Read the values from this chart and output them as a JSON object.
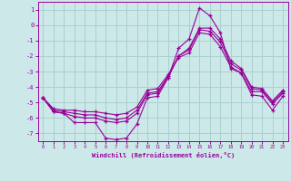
{
  "xlabel": "Windchill (Refroidissement éolien,°C)",
  "bg_color": "#cce8e8",
  "grid_color": "#aad0d0",
  "line_color": "#990099",
  "x_hours": [
    0,
    1,
    2,
    3,
    4,
    5,
    6,
    7,
    8,
    9,
    10,
    11,
    12,
    13,
    14,
    15,
    16,
    17,
    18,
    19,
    20,
    21,
    22,
    23
  ],
  "series1": [
    -4.7,
    -5.6,
    -5.7,
    -6.3,
    -6.3,
    -6.3,
    -7.3,
    -7.4,
    -7.3,
    -6.4,
    -4.7,
    -4.6,
    -3.4,
    -1.5,
    -0.9,
    1.1,
    0.6,
    -0.5,
    -2.8,
    -3.1,
    -4.5,
    -4.6,
    -5.5,
    -4.6
  ],
  "series2": [
    -4.7,
    -5.6,
    -5.7,
    -5.9,
    -6.0,
    -6.0,
    -6.2,
    -6.3,
    -6.2,
    -5.7,
    -4.5,
    -4.4,
    -3.4,
    -2.0,
    -1.5,
    -0.2,
    -0.2,
    -0.9,
    -2.3,
    -2.8,
    -4.0,
    -4.1,
    -4.9,
    -4.2
  ],
  "series3": [
    -4.7,
    -5.5,
    -5.6,
    -5.7,
    -5.8,
    -5.8,
    -6.0,
    -6.1,
    -6.0,
    -5.5,
    -4.4,
    -4.3,
    -3.3,
    -2.0,
    -1.6,
    -0.3,
    -0.4,
    -1.1,
    -2.5,
    -2.9,
    -4.1,
    -4.2,
    -5.0,
    -4.3
  ],
  "series4": [
    -4.7,
    -5.4,
    -5.5,
    -5.5,
    -5.6,
    -5.6,
    -5.7,
    -5.8,
    -5.7,
    -5.3,
    -4.2,
    -4.1,
    -3.2,
    -2.1,
    -1.8,
    -0.5,
    -0.6,
    -1.4,
    -2.7,
    -3.1,
    -4.3,
    -4.3,
    -5.1,
    -4.4
  ],
  "ylim": [
    -7.5,
    1.5
  ],
  "yticks": [
    1,
    0,
    -1,
    -2,
    -3,
    -4,
    -5,
    -6,
    -7
  ]
}
